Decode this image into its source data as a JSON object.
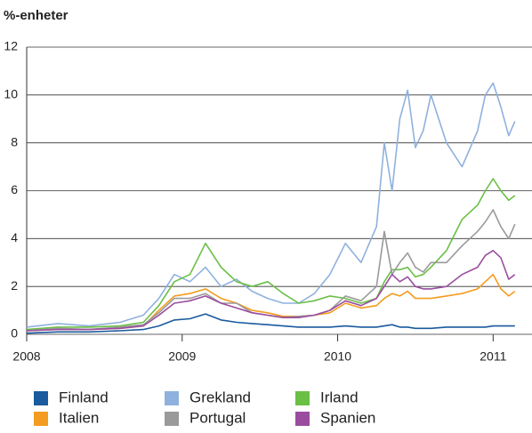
{
  "chart_data": {
    "type": "line",
    "title": "%-enheter",
    "x": [
      2008.0,
      2008.2,
      2008.4,
      2008.6,
      2008.75,
      2008.85,
      2008.95,
      2009.05,
      2009.15,
      2009.25,
      2009.35,
      2009.45,
      2009.55,
      2009.65,
      2009.75,
      2009.85,
      2009.95,
      2010.05,
      2010.15,
      2010.25,
      2010.3,
      2010.35,
      2010.4,
      2010.45,
      2010.5,
      2010.55,
      2010.6,
      2010.7,
      2010.8,
      2010.9,
      2010.95,
      2011.0,
      2011.05,
      2011.1,
      2011.14
    ],
    "series": [
      {
        "name": "Finland",
        "color": "#1a5a9e",
        "values": [
          0.05,
          0.1,
          0.1,
          0.15,
          0.2,
          0.35,
          0.6,
          0.65,
          0.85,
          0.6,
          0.5,
          0.45,
          0.4,
          0.35,
          0.3,
          0.3,
          0.3,
          0.35,
          0.3,
          0.3,
          0.35,
          0.4,
          0.3,
          0.3,
          0.25,
          0.25,
          0.25,
          0.3,
          0.3,
          0.3,
          0.3,
          0.35,
          0.35,
          0.35,
          0.35
        ]
      },
      {
        "name": "Grekland",
        "color": "#8fb1de",
        "values": [
          0.3,
          0.45,
          0.35,
          0.5,
          0.8,
          1.5,
          2.5,
          2.2,
          2.8,
          2.0,
          2.3,
          1.8,
          1.5,
          1.3,
          1.3,
          1.7,
          2.5,
          3.8,
          3.0,
          4.5,
          8.0,
          6.0,
          9.0,
          10.2,
          7.8,
          8.5,
          10.0,
          8.0,
          7.0,
          8.5,
          10.0,
          10.5,
          9.5,
          8.3,
          8.9
        ]
      },
      {
        "name": "Irland",
        "color": "#6abf45",
        "values": [
          0.2,
          0.3,
          0.3,
          0.35,
          0.5,
          1.2,
          2.2,
          2.5,
          3.8,
          2.8,
          2.2,
          2.0,
          2.2,
          1.7,
          1.3,
          1.4,
          1.6,
          1.5,
          1.3,
          1.5,
          2.2,
          2.7,
          2.7,
          2.8,
          2.4,
          2.5,
          2.8,
          3.5,
          4.8,
          5.4,
          6.0,
          6.5,
          6.0,
          5.6,
          5.8
        ]
      },
      {
        "name": "Italien",
        "color": "#f39c1f",
        "values": [
          0.15,
          0.2,
          0.2,
          0.25,
          0.35,
          1.0,
          1.6,
          1.7,
          1.9,
          1.5,
          1.3,
          1.0,
          0.9,
          0.75,
          0.75,
          0.8,
          0.9,
          1.3,
          1.1,
          1.2,
          1.5,
          1.7,
          1.6,
          1.8,
          1.5,
          1.5,
          1.5,
          1.6,
          1.7,
          1.9,
          2.2,
          2.5,
          1.9,
          1.6,
          1.8
        ]
      },
      {
        "name": "Portugal",
        "color": "#9a9a9a",
        "values": [
          0.15,
          0.25,
          0.2,
          0.3,
          0.4,
          0.9,
          1.5,
          1.5,
          1.7,
          1.3,
          1.3,
          0.9,
          0.8,
          0.7,
          0.75,
          0.8,
          1.0,
          1.6,
          1.4,
          2.0,
          4.3,
          2.5,
          3.0,
          3.4,
          2.8,
          2.6,
          3.0,
          3.0,
          3.7,
          4.3,
          4.7,
          5.2,
          4.5,
          4.0,
          4.6
        ]
      },
      {
        "name": "Spanien",
        "color": "#9a4d9f",
        "values": [
          0.15,
          0.2,
          0.2,
          0.25,
          0.35,
          0.8,
          1.3,
          1.4,
          1.6,
          1.3,
          1.1,
          0.9,
          0.8,
          0.7,
          0.7,
          0.8,
          1.0,
          1.4,
          1.2,
          1.5,
          2.0,
          2.5,
          2.2,
          2.4,
          2.0,
          1.9,
          1.9,
          2.0,
          2.5,
          2.8,
          3.3,
          3.5,
          3.2,
          2.3,
          2.5
        ]
      }
    ],
    "xlim": [
      2008,
      2011.25
    ],
    "xticks": [
      2008,
      2009,
      2010,
      2011
    ],
    "ylim": [
      0,
      12
    ],
    "yticks": [
      0,
      2,
      4,
      6,
      8,
      10,
      12
    ],
    "grid": true
  }
}
